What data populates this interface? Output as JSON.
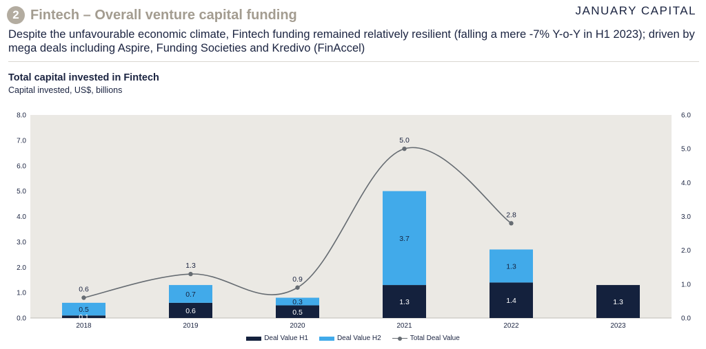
{
  "header": {
    "badge": "2",
    "title": "Fintech – Overall venture capital funding",
    "brand": "JANUARY CAPITAL",
    "subtitle": "Despite the unfavourable economic climate, Fintech funding remained relatively resilient (falling a mere -7% Y-o-Y in H1 2023); driven by mega deals including Aspire, Funding Societies and Kredivo (FinAccel)"
  },
  "colors": {
    "h1": "#14213d",
    "h2": "#41aaea",
    "line": "#666c72",
    "plot_bg": "#ebe9e4",
    "title": "#a39c90"
  },
  "chart_data": {
    "type": "bar",
    "title": "Total capital invested in Fintech",
    "subtitle": "Capital invested, US$, billions",
    "categories": [
      "2018",
      "2019",
      "2020",
      "2021",
      "2022",
      "2023"
    ],
    "stacked": true,
    "series": [
      {
        "name": "Deal Value H1",
        "type": "bar",
        "axis": "left",
        "values": [
          0.1,
          0.6,
          0.5,
          1.3,
          1.4,
          1.3
        ],
        "labels": [
          "0.1",
          "0.6",
          "0.5",
          "1.3",
          "1.4",
          "1.3"
        ]
      },
      {
        "name": "Deal Value H2",
        "type": "bar",
        "axis": "left",
        "values": [
          0.5,
          0.7,
          0.3,
          3.7,
          1.3,
          null
        ],
        "labels": [
          "0.5",
          "0.7",
          "0.3",
          "3.7",
          "1.3",
          ""
        ]
      },
      {
        "name": "Total Deal Value",
        "type": "line",
        "axis": "right",
        "smooth": true,
        "values": [
          0.6,
          1.3,
          0.9,
          5.0,
          2.8,
          null
        ],
        "labels": [
          "0.6",
          "1.3",
          "0.9",
          "5.0",
          "2.8",
          ""
        ]
      }
    ],
    "y_left": {
      "min": 0,
      "max": 8,
      "ticks": [
        "0.0",
        "1.0",
        "2.0",
        "3.0",
        "4.0",
        "5.0",
        "6.0",
        "7.0",
        "8.0"
      ]
    },
    "y_right": {
      "min": 0,
      "max": 6,
      "ticks": [
        "0.0",
        "1.0",
        "2.0",
        "3.0",
        "4.0",
        "5.0",
        "6.0"
      ]
    },
    "grid": false,
    "legend_position": "bottom"
  }
}
